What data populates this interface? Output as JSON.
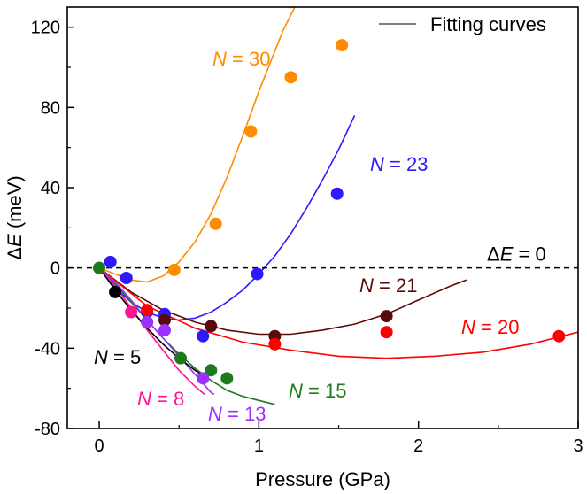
{
  "chart_data": {
    "type": "scatter",
    "xlabel": "Pressure (GPa)",
    "ylabel": "ΔE (meV)",
    "xlim": [
      -0.2,
      3.0
    ],
    "ylim": [
      -80,
      130
    ],
    "x_ticks": [
      "0",
      "1",
      "2",
      "3"
    ],
    "y_ticks": [
      "-80",
      "-40",
      "0",
      "40",
      "80",
      "120"
    ],
    "x_tick_values": [
      0,
      1,
      2,
      3
    ],
    "y_tick_values": [
      -80,
      -40,
      0,
      40,
      80,
      120
    ],
    "grid": false,
    "legend": {
      "position": "top-right",
      "entries": [
        "Fitting curves"
      ]
    },
    "reference_line": {
      "y": 0,
      "label_prefix": "Δ",
      "label_var": "E",
      "label_suffix": " = 0"
    },
    "series": [
      {
        "name": "N = 30",
        "label_var": "N",
        "label_value": " = 30",
        "color": "#FF8C00",
        "points": [
          [
            0.0,
            0.0
          ],
          [
            0.47,
            -1
          ],
          [
            0.73,
            22
          ],
          [
            0.95,
            68
          ],
          [
            1.2,
            95
          ],
          [
            1.52,
            111
          ]
        ],
        "fit": [
          [
            0.0,
            0
          ],
          [
            0.1,
            -3
          ],
          [
            0.2,
            -6
          ],
          [
            0.3,
            -7
          ],
          [
            0.4,
            -4
          ],
          [
            0.5,
            3
          ],
          [
            0.6,
            13
          ],
          [
            0.7,
            27
          ],
          [
            0.8,
            45
          ],
          [
            0.9,
            66
          ],
          [
            1.0,
            88
          ],
          [
            1.1,
            108
          ],
          [
            1.15,
            118
          ],
          [
            1.2,
            126
          ],
          [
            1.25,
            134
          ]
        ]
      },
      {
        "name": "N = 23",
        "label_var": "N",
        "label_value": " = 23",
        "color": "#2E1AFF",
        "points": [
          [
            0.07,
            3
          ],
          [
            0.17,
            -5
          ],
          [
            0.3,
            -22
          ],
          [
            0.41,
            -23
          ],
          [
            0.65,
            -34
          ],
          [
            0.99,
            -3
          ],
          [
            1.49,
            37
          ]
        ],
        "fit": [
          [
            0.0,
            0
          ],
          [
            0.1,
            -10
          ],
          [
            0.2,
            -17
          ],
          [
            0.3,
            -22
          ],
          [
            0.4,
            -25
          ],
          [
            0.5,
            -26
          ],
          [
            0.6,
            -25
          ],
          [
            0.7,
            -22
          ],
          [
            0.8,
            -17
          ],
          [
            0.9,
            -11
          ],
          [
            1.0,
            -3
          ],
          [
            1.1,
            6
          ],
          [
            1.2,
            17
          ],
          [
            1.3,
            30
          ],
          [
            1.4,
            44
          ],
          [
            1.5,
            59
          ],
          [
            1.6,
            76
          ]
        ]
      },
      {
        "name": "N = 21",
        "label_var": "N",
        "label_value": " = 21",
        "color": "#5A0A0A",
        "points": [
          [
            0.41,
            -26
          ],
          [
            0.7,
            -29
          ],
          [
            1.1,
            -34
          ],
          [
            1.8,
            -24
          ]
        ],
        "fit": [
          [
            0.0,
            0
          ],
          [
            0.2,
            -12
          ],
          [
            0.4,
            -21
          ],
          [
            0.6,
            -27
          ],
          [
            0.8,
            -31
          ],
          [
            1.0,
            -33
          ],
          [
            1.2,
            -33
          ],
          [
            1.4,
            -31
          ],
          [
            1.6,
            -28
          ],
          [
            1.8,
            -23
          ],
          [
            2.0,
            -16
          ],
          [
            2.2,
            -9
          ],
          [
            2.3,
            -6
          ]
        ]
      },
      {
        "name": "N = 20",
        "label_var": "N",
        "label_value": " = 20",
        "color": "#FF0000",
        "points": [
          [
            0.3,
            -21
          ],
          [
            1.1,
            -38
          ],
          [
            1.8,
            -32
          ],
          [
            2.88,
            -34
          ]
        ],
        "fit": [
          [
            0.0,
            0
          ],
          [
            0.3,
            -19
          ],
          [
            0.6,
            -30
          ],
          [
            0.9,
            -37
          ],
          [
            1.2,
            -41
          ],
          [
            1.5,
            -44
          ],
          [
            1.8,
            -45
          ],
          [
            2.1,
            -44
          ],
          [
            2.4,
            -42
          ],
          [
            2.7,
            -38
          ],
          [
            3.0,
            -32
          ]
        ]
      },
      {
        "name": "N = 15",
        "label_var": "N",
        "label_value": " = 15",
        "color": "#1E7A1E",
        "points": [
          [
            0.0,
            0.0
          ],
          [
            0.51,
            -45
          ],
          [
            0.7,
            -51
          ],
          [
            0.8,
            -55
          ]
        ],
        "fit": [
          [
            0.0,
            0
          ],
          [
            0.1,
            -8
          ],
          [
            0.2,
            -17
          ],
          [
            0.3,
            -26
          ],
          [
            0.4,
            -35
          ],
          [
            0.5,
            -43
          ],
          [
            0.6,
            -50
          ],
          [
            0.7,
            -56
          ],
          [
            0.8,
            -61
          ],
          [
            0.9,
            -64
          ],
          [
            1.0,
            -66
          ],
          [
            1.1,
            -68
          ]
        ]
      },
      {
        "name": "N = 13",
        "label_var": "N",
        "label_value": " = 13",
        "color": "#9B30FF",
        "points": [
          [
            0.3,
            -27
          ],
          [
            0.41,
            -31
          ],
          [
            0.65,
            -55
          ]
        ],
        "fit": [
          [
            0.0,
            0
          ],
          [
            0.1,
            -7
          ],
          [
            0.2,
            -16
          ],
          [
            0.3,
            -26
          ],
          [
            0.4,
            -35
          ],
          [
            0.5,
            -44
          ],
          [
            0.6,
            -53
          ],
          [
            0.7,
            -62
          ],
          [
            0.72,
            -63
          ]
        ]
      },
      {
        "name": "N = 8",
        "label_var": "N",
        "label_value": " = 8",
        "color": "#FF1493",
        "points": [
          [
            0.2,
            -22
          ]
        ],
        "fit": [
          [
            0.0,
            0
          ],
          [
            0.1,
            -9
          ],
          [
            0.2,
            -20
          ],
          [
            0.3,
            -31
          ],
          [
            0.4,
            -41
          ],
          [
            0.5,
            -51
          ],
          [
            0.6,
            -59
          ],
          [
            0.66,
            -63
          ]
        ]
      },
      {
        "name": "N = 5",
        "label_var": "N",
        "label_value": " = 5",
        "color": "#000000",
        "points": [
          [
            0.1,
            -12
          ]
        ],
        "fit": [
          [
            0.0,
            0
          ],
          [
            0.1,
            -11
          ],
          [
            0.2,
            -21
          ],
          [
            0.3,
            -30
          ],
          [
            0.4,
            -38
          ],
          [
            0.5,
            -45
          ],
          [
            0.6,
            -51
          ],
          [
            0.64,
            -53
          ]
        ]
      }
    ]
  }
}
